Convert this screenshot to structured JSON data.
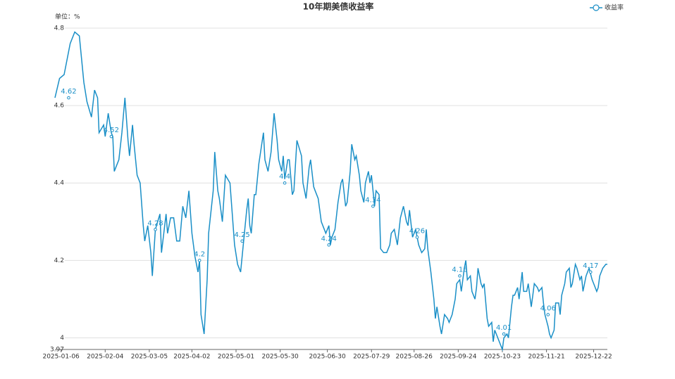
{
  "chart_data": {
    "type": "line",
    "title": "10年期美债收益率",
    "unit_label": "单位：%",
    "x": [
      "2025-01-02",
      "2025-01-05",
      "2025-01-08",
      "2025-01-12",
      "2025-01-15",
      "2025-01-18",
      "2025-01-21",
      "2025-01-23",
      "2025-01-26",
      "2025-01-28",
      "2025-01-30",
      "2025-01-31",
      "2025-02-03",
      "2025-02-04",
      "2025-02-06",
      "2025-02-08",
      "2025-02-09",
      "2025-02-10",
      "2025-02-13",
      "2025-02-15",
      "2025-02-17",
      "2025-02-19",
      "2025-02-20",
      "2025-02-22",
      "2025-02-23",
      "2025-02-25",
      "2025-02-27",
      "2025-03-01",
      "2025-03-02",
      "2025-03-04",
      "2025-03-06",
      "2025-03-07",
      "2025-03-09",
      "2025-03-12",
      "2025-03-13",
      "2025-03-16",
      "2025-03-17",
      "2025-03-19",
      "2025-03-21",
      "2025-03-23",
      "2025-03-25",
      "2025-03-27",
      "2025-03-29",
      "2025-03-31",
      "2025-04-02",
      "2025-04-04",
      "2025-04-06",
      "2025-04-07",
      "2025-04-08",
      "2025-04-10",
      "2025-04-12",
      "2025-04-13",
      "2025-04-16",
      "2025-04-17",
      "2025-04-19",
      "2025-04-20",
      "2025-04-22",
      "2025-04-24",
      "2025-04-27",
      "2025-04-30",
      "2025-05-02",
      "2025-05-04",
      "2025-05-06",
      "2025-05-08",
      "2025-05-09",
      "2025-05-10",
      "2025-05-11",
      "2025-05-13",
      "2025-05-14",
      "2025-05-16",
      "2025-05-19",
      "2025-05-20",
      "2025-05-22",
      "2025-05-24",
      "2025-05-26",
      "2025-05-28",
      "2025-05-29",
      "2025-05-31",
      "2025-06-01",
      "2025-06-02",
      "2025-06-04",
      "2025-06-05",
      "2025-06-07",
      "2025-06-08",
      "2025-06-10",
      "2025-06-13",
      "2025-06-14",
      "2025-06-16",
      "2025-06-18",
      "2025-06-19",
      "2025-06-21",
      "2025-06-22",
      "2025-06-24",
      "2025-06-26",
      "2025-06-28",
      "2025-06-29",
      "2025-07-01",
      "2025-07-02",
      "2025-07-03",
      "2025-07-05",
      "2025-07-07",
      "2025-07-09",
      "2025-07-10",
      "2025-07-12",
      "2025-07-13",
      "2025-07-15",
      "2025-07-16",
      "2025-07-18",
      "2025-07-19",
      "2025-07-21",
      "2025-07-22",
      "2025-07-24",
      "2025-07-25",
      "2025-07-27",
      "2025-07-28",
      "2025-07-29",
      "2025-07-31",
      "2025-08-01",
      "2025-08-03",
      "2025-08-04",
      "2025-08-06",
      "2025-08-08",
      "2025-08-10",
      "2025-08-11",
      "2025-08-13",
      "2025-08-15",
      "2025-08-17",
      "2025-08-19",
      "2025-08-21",
      "2025-08-22",
      "2025-08-23",
      "2025-08-25",
      "2025-08-27",
      "2025-08-29",
      "2025-08-31",
      "2025-09-02",
      "2025-09-03",
      "2025-09-04",
      "2025-09-06",
      "2025-09-08",
      "2025-09-09",
      "2025-09-10",
      "2025-09-12",
      "2025-09-13",
      "2025-09-15",
      "2025-09-17",
      "2025-09-18",
      "2025-09-20",
      "2025-09-22",
      "2025-09-23",
      "2025-09-25",
      "2025-09-26",
      "2025-09-28",
      "2025-09-29",
      "2025-09-30",
      "2025-10-02",
      "2025-10-03",
      "2025-10-05",
      "2025-10-06",
      "2025-10-07",
      "2025-10-09",
      "2025-10-10",
      "2025-10-11",
      "2025-10-13",
      "2025-10-14",
      "2025-10-16",
      "2025-10-17",
      "2025-10-18",
      "2025-10-20",
      "2025-10-22",
      "2025-10-23",
      "2025-10-24",
      "2025-10-26",
      "2025-10-27",
      "2025-10-29",
      "2025-10-30",
      "2025-10-31",
      "2025-11-02",
      "2025-11-03",
      "2025-11-05",
      "2025-11-06",
      "2025-11-08",
      "2025-11-09",
      "2025-11-11",
      "2025-11-12",
      "2025-11-13",
      "2025-11-15",
      "2025-11-16",
      "2025-11-18",
      "2025-11-19",
      "2025-11-20",
      "2025-11-22",
      "2025-11-23",
      "2025-11-24",
      "2025-11-26",
      "2025-11-27",
      "2025-11-29",
      "2025-11-30",
      "2025-12-01",
      "2025-12-03",
      "2025-12-04",
      "2025-12-06",
      "2025-12-07",
      "2025-12-08",
      "2025-12-10",
      "2025-12-11",
      "2025-12-13",
      "2025-12-14",
      "2025-12-15",
      "2025-12-17",
      "2025-12-18",
      "2025-12-19",
      "2025-12-21",
      "2025-12-22",
      "2025-12-24",
      "2025-12-25",
      "2025-12-26",
      "2025-12-28",
      "2025-12-30",
      "2025-12-31"
    ],
    "series": [
      {
        "name": "收益率",
        "color": "#1a8fc7",
        "values": [
          4.62,
          4.67,
          4.68,
          4.76,
          4.79,
          4.78,
          4.66,
          4.61,
          4.57,
          4.64,
          4.62,
          4.53,
          4.55,
          4.52,
          4.58,
          4.53,
          4.52,
          4.43,
          4.46,
          4.53,
          4.62,
          4.51,
          4.47,
          4.55,
          4.5,
          4.42,
          4.4,
          4.29,
          4.25,
          4.29,
          4.22,
          4.16,
          4.28,
          4.32,
          4.22,
          4.32,
          4.27,
          4.31,
          4.31,
          4.25,
          4.25,
          4.34,
          4.31,
          4.38,
          4.27,
          4.21,
          4.17,
          4.2,
          4.06,
          4.01,
          4.15,
          4.27,
          4.38,
          4.48,
          4.38,
          4.36,
          4.3,
          4.42,
          4.4,
          4.24,
          4.19,
          4.17,
          4.25,
          4.33,
          4.36,
          4.29,
          4.27,
          4.37,
          4.37,
          4.45,
          4.53,
          4.46,
          4.43,
          4.48,
          4.58,
          4.51,
          4.46,
          4.43,
          4.47,
          4.41,
          4.46,
          4.46,
          4.37,
          4.38,
          4.51,
          4.47,
          4.4,
          4.36,
          4.44,
          4.46,
          4.39,
          4.38,
          4.36,
          4.3,
          4.28,
          4.27,
          4.29,
          4.24,
          4.26,
          4.28,
          4.35,
          4.4,
          4.41,
          4.34,
          4.35,
          4.43,
          4.5,
          4.46,
          4.47,
          4.42,
          4.38,
          4.35,
          4.4,
          4.43,
          4.4,
          4.42,
          4.34,
          4.38,
          4.37,
          4.23,
          4.22,
          4.22,
          4.24,
          4.27,
          4.28,
          4.24,
          4.31,
          4.34,
          4.3,
          4.29,
          4.33,
          4.26,
          4.28,
          4.24,
          4.22,
          4.23,
          4.28,
          4.23,
          4.17,
          4.1,
          4.05,
          4.08,
          4.03,
          4.01,
          4.06,
          4.05,
          4.04,
          4.06,
          4.1,
          4.14,
          4.15,
          4.12,
          4.18,
          4.2,
          4.15,
          4.16,
          4.12,
          4.1,
          4.13,
          4.18,
          4.14,
          4.13,
          4.14,
          4.05,
          4.03,
          4.04,
          3.99,
          4.02,
          4,
          3.98,
          3.97,
          4,
          4.01,
          4,
          4.08,
          4.11,
          4.11,
          4.13,
          4.1,
          4.17,
          4.12,
          4.12,
          4.14,
          4.08,
          4.11,
          4.14,
          4.13,
          4.12,
          4.13,
          4.09,
          4.06,
          4.03,
          4.01,
          4,
          4.02,
          4.09,
          4.09,
          4.06,
          4.11,
          4.14,
          4.17,
          4.18,
          4.13,
          4.14,
          4.19,
          4.18,
          4.15,
          4.16,
          4.12,
          4.16,
          4.17,
          4.18,
          4.15,
          4.14,
          4.12,
          4.13,
          4.16,
          4.18,
          4.19,
          4.19
        ]
      }
    ],
    "annotations": [
      {
        "x": "2025-01-11",
        "value": 4.62
      },
      {
        "x": "2025-02-08",
        "value": 4.52
      },
      {
        "x": "2025-03-09",
        "value": 4.28
      },
      {
        "x": "2025-04-07",
        "value": 4.2
      },
      {
        "x": "2025-05-05",
        "value": 4.25
      },
      {
        "x": "2025-06-02",
        "value": 4.4
      },
      {
        "x": "2025-07-01",
        "value": 4.24
      },
      {
        "x": "2025-07-30",
        "value": 4.34
      },
      {
        "x": "2025-08-28",
        "value": 4.26
      },
      {
        "x": "2025-09-25",
        "value": 4.16
      },
      {
        "x": "2025-10-24",
        "value": 4.01
      },
      {
        "x": "2025-11-22",
        "value": 4.06
      },
      {
        "x": "2025-12-20",
        "value": 4.17
      }
    ],
    "xlim": [
      "2025-01-02",
      "2025-12-31"
    ],
    "xticks": [
      "2025-01-06",
      "2025-02-04",
      "2025-03-05",
      "2025-04-02",
      "2025-05-01",
      "2025-05-30",
      "2025-06-30",
      "2025-07-29",
      "2025-08-26",
      "2025-09-24",
      "2025-10-23",
      "2025-11-21",
      "2025-12-22"
    ],
    "ylim": [
      3.97,
      4.8
    ],
    "yticks": [
      3.97,
      4,
      4.2,
      4.4,
      4.6,
      4.8
    ],
    "grid": true,
    "legend": "top-right"
  }
}
